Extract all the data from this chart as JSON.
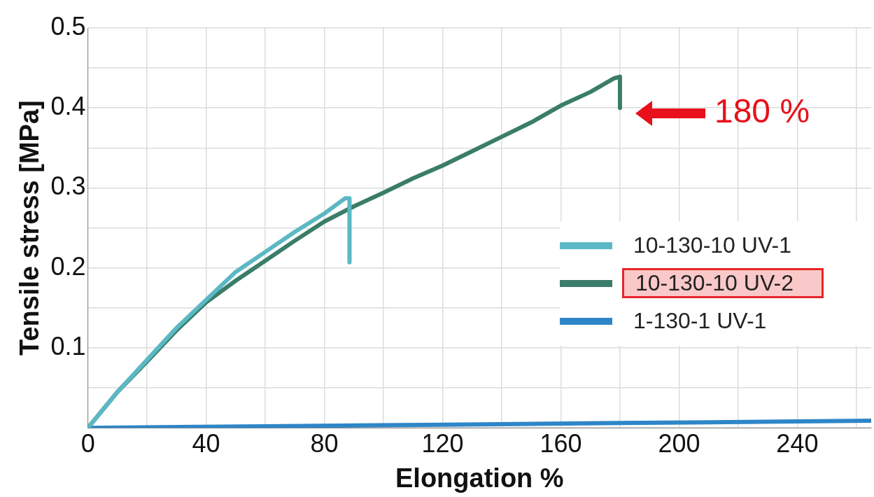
{
  "chart_data": {
    "type": "line",
    "xlabel": "Elongation %",
    "ylabel": "Tensile stress [MPa]",
    "xlim": [
      0,
      265
    ],
    "ylim": [
      0,
      0.5
    ],
    "xticks": [
      0,
      {
        "value": 20,
        "label": null
      },
      40,
      {
        "value": 60,
        "label": null
      },
      80,
      {
        "value": 100,
        "label": null
      },
      120,
      {
        "value": 140,
        "label": null
      },
      160,
      {
        "value": 180,
        "label": null
      },
      200,
      {
        "value": 220,
        "label": null
      },
      240,
      {
        "value": 260,
        "label": null
      }
    ],
    "yticks": [
      {
        "value": 0,
        "label": null
      },
      {
        "value": 0.05,
        "label": null
      },
      0.1,
      {
        "value": 0.15,
        "label": null
      },
      0.2,
      {
        "value": 0.25,
        "label": null
      },
      0.3,
      {
        "value": 0.35,
        "label": null
      },
      0.4,
      {
        "value": 0.45,
        "label": null
      },
      0.5
    ],
    "grid": true,
    "legend": "right",
    "marker": "none",
    "line_style": "solid",
    "series": [
      {
        "name": "10-130-10 UV-1",
        "color": "#5bb8c4",
        "x": [
          0,
          10,
          20,
          30,
          40,
          50,
          60,
          70,
          80,
          87,
          88.5,
          88.5
        ],
        "values": [
          0,
          0.045,
          0.085,
          0.125,
          0.16,
          0.195,
          0.22,
          0.245,
          0.268,
          0.287,
          0.287,
          0.207
        ]
      },
      {
        "name": "10-130-10 UV-2",
        "color": "#3a7d68",
        "x": [
          0,
          10,
          20,
          30,
          40,
          50,
          60,
          70,
          80,
          90,
          100,
          110,
          120,
          130,
          140,
          150,
          160,
          170,
          178,
          180,
          180
        ],
        "values": [
          0,
          0.045,
          0.083,
          0.122,
          0.157,
          0.184,
          0.209,
          0.234,
          0.258,
          0.277,
          0.294,
          0.312,
          0.328,
          0.346,
          0.364,
          0.382,
          0.403,
          0.42,
          0.437,
          0.439,
          0.4
        ]
      },
      {
        "name": "1-130-1 UV-1",
        "color": "#2e86c8",
        "x": [
          0,
          60,
          120,
          180,
          240,
          265
        ],
        "values": [
          0,
          0.002,
          0.004,
          0.006,
          0.008,
          0.009
        ]
      }
    ],
    "annotations": [
      {
        "text": "180 %",
        "x": 180,
        "y": 0.4
      }
    ]
  }
}
